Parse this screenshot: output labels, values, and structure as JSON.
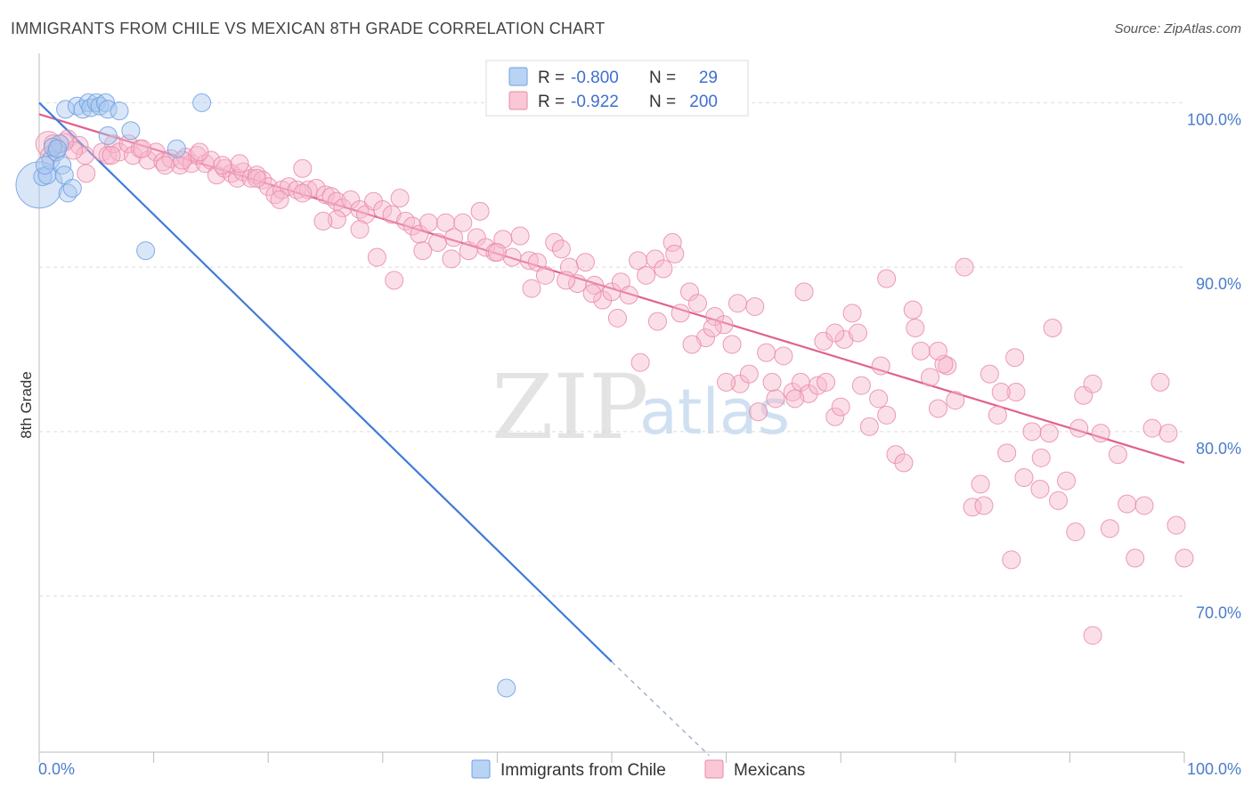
{
  "header": {
    "title": "IMMIGRANTS FROM CHILE VS MEXICAN 8TH GRADE CORRELATION CHART",
    "source": "Source: ZipAtlas.com"
  },
  "watermark": {
    "zip": "ZIP",
    "atlas": "atlas"
  },
  "legend": {
    "rows": [
      {
        "r_label": "R =",
        "r_value": "-0.800",
        "n_label": "N =",
        "n_value": "29",
        "color": "#a8c8f0",
        "stroke": "#6f9fe0"
      },
      {
        "r_label": "R =",
        "r_value": "-0.922",
        "n_label": "N =",
        "n_value": "200",
        "color": "#f7b9cb",
        "stroke": "#e98aa8"
      }
    ]
  },
  "chart_data": {
    "type": "scatter",
    "xlabel": "",
    "ylabel": "8th Grade",
    "xlim": [
      0,
      100
    ],
    "ylim": [
      60.5,
      103
    ],
    "x_tick_labels": [
      "0.0%",
      "100.0%"
    ],
    "y_ticks": [
      {
        "value": 100,
        "label": "100.0%"
      },
      {
        "value": 90,
        "label": "90.0%"
      },
      {
        "value": 80,
        "label": "80.0%"
      },
      {
        "value": 70,
        "label": "70.0%"
      }
    ],
    "grid": true,
    "legend_position": "bottom-center",
    "series": [
      {
        "name": "Immigrants from Chile",
        "color": "#a8c8f0",
        "stroke": "#6f9fe0",
        "line_color": "#3f7bd9",
        "trend": {
          "x0": 0,
          "y0": 100.0,
          "x1": 50,
          "y1": 66.0,
          "dash_to_x": 58.5,
          "dash_to_y": 60.3
        },
        "points": [
          [
            0.0,
            95.0,
            26
          ],
          [
            0.3,
            95.5,
            10
          ],
          [
            0.7,
            95.6,
            10
          ],
          [
            1.0,
            96.5,
            10
          ],
          [
            1.5,
            97.0,
            10
          ],
          [
            1.8,
            97.5,
            10
          ],
          [
            2.0,
            96.2,
            10
          ],
          [
            2.2,
            95.6,
            10
          ],
          [
            2.5,
            94.5,
            10
          ],
          [
            2.9,
            94.8,
            10
          ],
          [
            2.3,
            99.6,
            10
          ],
          [
            3.3,
            99.8,
            10
          ],
          [
            3.8,
            99.6,
            10
          ],
          [
            4.3,
            100.0,
            10
          ],
          [
            4.5,
            99.7,
            10
          ],
          [
            5.0,
            100.0,
            10
          ],
          [
            5.3,
            99.8,
            10
          ],
          [
            5.8,
            100.0,
            10
          ],
          [
            6.0,
            99.6,
            10
          ],
          [
            7.0,
            99.5,
            10
          ],
          [
            6.0,
            98.0,
            10
          ],
          [
            8.0,
            98.3,
            10
          ],
          [
            12.0,
            97.2,
            10
          ],
          [
            14.2,
            100.0,
            10
          ],
          [
            9.3,
            91.0,
            10
          ],
          [
            1.2,
            97.3,
            10
          ],
          [
            1.6,
            97.2,
            10
          ],
          [
            0.5,
            96.2,
            10
          ],
          [
            40.8,
            64.4,
            10
          ]
        ]
      },
      {
        "name": "Mexicans",
        "color": "#f7b9cb",
        "stroke": "#e98aa8",
        "line_color": "#e0608e",
        "trend": {
          "x0": 0,
          "y0": 99.3,
          "x1": 100,
          "y1": 78.1
        },
        "points": [
          [
            0.8,
            97.5,
            14
          ],
          [
            1.5,
            97.2,
            10
          ],
          [
            2.5,
            97.8,
            10
          ],
          [
            3.5,
            97.4,
            10
          ],
          [
            4.0,
            96.8,
            10
          ],
          [
            4.1,
            95.7,
            10
          ],
          [
            5.5,
            97.0,
            10
          ],
          [
            6.0,
            96.8,
            10
          ],
          [
            6.5,
            97.5,
            10
          ],
          [
            7.0,
            97.0,
            10
          ],
          [
            7.8,
            97.5,
            10
          ],
          [
            8.2,
            96.8,
            10
          ],
          [
            8.8,
            97.2,
            10
          ],
          [
            9.5,
            96.5,
            10
          ],
          [
            10.2,
            97.0,
            10
          ],
          [
            10.8,
            96.4,
            10
          ],
          [
            11.5,
            96.6,
            10
          ],
          [
            12.3,
            96.2,
            10
          ],
          [
            12.8,
            96.7,
            10
          ],
          [
            13.3,
            96.3,
            10
          ],
          [
            13.8,
            96.8,
            10
          ],
          [
            14.5,
            96.3,
            10
          ],
          [
            15.0,
            96.5,
            10
          ],
          [
            15.5,
            95.6,
            10
          ],
          [
            16.2,
            96.0,
            10
          ],
          [
            16.8,
            95.7,
            10
          ],
          [
            17.3,
            95.4,
            10
          ],
          [
            17.8,
            95.8,
            10
          ],
          [
            18.5,
            95.4,
            10
          ],
          [
            19.0,
            95.6,
            10
          ],
          [
            19.5,
            95.3,
            10
          ],
          [
            20.0,
            94.9,
            10
          ],
          [
            20.6,
            94.4,
            10
          ],
          [
            21.2,
            94.7,
            10
          ],
          [
            21.8,
            94.9,
            10
          ],
          [
            22.5,
            94.7,
            10
          ],
          [
            23.0,
            96.0,
            10
          ],
          [
            23.5,
            94.7,
            10
          ],
          [
            24.2,
            94.8,
            10
          ],
          [
            25.0,
            94.4,
            10
          ],
          [
            25.5,
            94.3,
            10
          ],
          [
            26.0,
            94.0,
            10
          ],
          [
            26.5,
            93.6,
            10
          ],
          [
            27.2,
            94.1,
            10
          ],
          [
            28.0,
            93.5,
            10
          ],
          [
            28.5,
            93.2,
            10
          ],
          [
            29.2,
            94.0,
            10
          ],
          [
            30.0,
            93.5,
            10
          ],
          [
            30.8,
            93.2,
            10
          ],
          [
            31.5,
            94.2,
            10
          ],
          [
            32.0,
            92.8,
            10
          ],
          [
            32.6,
            92.5,
            10
          ],
          [
            33.2,
            92.0,
            10
          ],
          [
            34.0,
            92.7,
            10
          ],
          [
            34.8,
            91.5,
            10
          ],
          [
            35.5,
            92.7,
            10
          ],
          [
            36.2,
            91.8,
            10
          ],
          [
            37.0,
            92.7,
            10
          ],
          [
            37.5,
            91.0,
            10
          ],
          [
            38.2,
            91.8,
            10
          ],
          [
            39.0,
            91.2,
            10
          ],
          [
            39.8,
            90.9,
            10
          ],
          [
            40.5,
            91.7,
            10
          ],
          [
            41.3,
            90.6,
            10
          ],
          [
            42.0,
            91.9,
            10
          ],
          [
            42.8,
            90.4,
            10
          ],
          [
            43.5,
            90.3,
            10
          ],
          [
            44.2,
            89.5,
            10
          ],
          [
            45.0,
            91.5,
            10
          ],
          [
            45.6,
            91.1,
            10
          ],
          [
            46.3,
            90.0,
            10
          ],
          [
            47.0,
            89.0,
            10
          ],
          [
            47.7,
            90.3,
            10
          ],
          [
            48.5,
            88.9,
            10
          ],
          [
            49.2,
            88.0,
            10
          ],
          [
            50.0,
            88.5,
            10
          ],
          [
            50.8,
            89.1,
            10
          ],
          [
            51.5,
            88.3,
            10
          ],
          [
            52.3,
            90.4,
            10
          ],
          [
            53.0,
            89.5,
            10
          ],
          [
            53.8,
            90.5,
            10
          ],
          [
            54.5,
            89.9,
            10
          ],
          [
            55.3,
            91.5,
            10
          ],
          [
            56.0,
            87.2,
            10
          ],
          [
            56.8,
            88.5,
            10
          ],
          [
            57.5,
            87.8,
            10
          ],
          [
            58.2,
            85.7,
            10
          ],
          [
            59.0,
            87.0,
            10
          ],
          [
            59.8,
            86.5,
            10
          ],
          [
            60.5,
            85.3,
            10
          ],
          [
            61.2,
            82.9,
            10
          ],
          [
            62.0,
            83.5,
            10
          ],
          [
            62.8,
            81.2,
            10
          ],
          [
            63.5,
            84.8,
            10
          ],
          [
            64.3,
            82.0,
            10
          ],
          [
            65.0,
            84.6,
            10
          ],
          [
            65.8,
            82.4,
            10
          ],
          [
            66.5,
            83.0,
            10
          ],
          [
            67.2,
            82.3,
            10
          ],
          [
            68.0,
            82.8,
            10
          ],
          [
            68.7,
            83.0,
            10
          ],
          [
            69.5,
            80.9,
            10
          ],
          [
            70.3,
            85.6,
            10
          ],
          [
            71.0,
            87.2,
            10
          ],
          [
            71.8,
            82.8,
            10
          ],
          [
            72.5,
            80.3,
            10
          ],
          [
            73.3,
            82.0,
            10
          ],
          [
            74.0,
            81.0,
            10
          ],
          [
            74.8,
            78.6,
            10
          ],
          [
            75.5,
            78.1,
            10
          ],
          [
            76.3,
            87.4,
            10
          ],
          [
            77.0,
            84.9,
            10
          ],
          [
            77.8,
            83.3,
            10
          ],
          [
            78.5,
            81.4,
            10
          ],
          [
            79.3,
            84.0,
            10
          ],
          [
            80.0,
            81.9,
            10
          ],
          [
            80.8,
            90.0,
            10
          ],
          [
            81.5,
            75.4,
            10
          ],
          [
            82.2,
            76.8,
            10
          ],
          [
            83.0,
            83.5,
            10
          ],
          [
            83.7,
            81.0,
            10
          ],
          [
            84.5,
            78.7,
            10
          ],
          [
            85.3,
            82.4,
            10
          ],
          [
            86.0,
            77.2,
            10
          ],
          [
            86.7,
            80.0,
            10
          ],
          [
            87.5,
            78.4,
            10
          ],
          [
            88.2,
            79.9,
            10
          ],
          [
            89.0,
            75.8,
            10
          ],
          [
            89.7,
            77.0,
            10
          ],
          [
            90.5,
            73.9,
            10
          ],
          [
            91.2,
            82.2,
            10
          ],
          [
            92.0,
            82.9,
            10
          ],
          [
            92.7,
            79.9,
            10
          ],
          [
            93.5,
            74.1,
            10
          ],
          [
            94.2,
            78.6,
            10
          ],
          [
            95.0,
            75.6,
            10
          ],
          [
            95.7,
            72.3,
            10
          ],
          [
            96.5,
            75.5,
            10
          ],
          [
            97.2,
            80.2,
            10
          ],
          [
            97.9,
            83.0,
            10
          ],
          [
            98.6,
            79.9,
            10
          ],
          [
            99.3,
            74.3,
            10
          ],
          [
            100.0,
            72.3,
            10
          ],
          [
            92.0,
            67.6,
            10
          ],
          [
            90.8,
            80.2,
            10
          ],
          [
            87.4,
            76.5,
            10
          ],
          [
            84.9,
            72.2,
            10
          ],
          [
            82.5,
            75.5,
            10
          ],
          [
            85.2,
            84.5,
            10
          ],
          [
            84.0,
            82.4,
            10
          ],
          [
            79.0,
            84.1,
            10
          ],
          [
            76.5,
            86.3,
            10
          ],
          [
            73.5,
            84.0,
            10
          ],
          [
            70.0,
            81.5,
            10
          ],
          [
            68.5,
            85.5,
            10
          ],
          [
            66.0,
            82.0,
            10
          ],
          [
            64.0,
            83.0,
            10
          ],
          [
            60.0,
            83.0,
            10
          ],
          [
            57.0,
            85.3,
            10
          ],
          [
            54.0,
            86.7,
            10
          ],
          [
            52.5,
            84.2,
            10
          ],
          [
            50.5,
            86.9,
            10
          ],
          [
            48.3,
            88.4,
            10
          ],
          [
            46.0,
            89.2,
            10
          ],
          [
            43.0,
            88.7,
            10
          ],
          [
            40.0,
            90.9,
            10
          ],
          [
            38.5,
            93.4,
            10
          ],
          [
            36.0,
            90.5,
            10
          ],
          [
            33.5,
            91.0,
            10
          ],
          [
            31.0,
            89.2,
            10
          ],
          [
            29.5,
            90.6,
            10
          ],
          [
            28.0,
            92.3,
            10
          ],
          [
            26.0,
            92.9,
            10
          ],
          [
            24.8,
            92.8,
            10
          ],
          [
            23.0,
            94.5,
            10
          ],
          [
            21.0,
            94.1,
            10
          ],
          [
            19.0,
            95.4,
            10
          ],
          [
            17.5,
            96.3,
            10
          ],
          [
            16.0,
            96.2,
            10
          ],
          [
            14.0,
            97.0,
            10
          ],
          [
            12.5,
            96.5,
            10
          ],
          [
            11.0,
            96.2,
            10
          ],
          [
            9.0,
            97.2,
            10
          ],
          [
            6.3,
            96.8,
            10
          ],
          [
            3.0,
            97.1,
            10
          ],
          [
            2.2,
            97.6,
            10
          ],
          [
            1.2,
            97.5,
            10
          ],
          [
            0.9,
            96.8,
            10
          ],
          [
            66.8,
            88.5,
            10
          ],
          [
            69.5,
            86.0,
            10
          ],
          [
            74.0,
            89.3,
            10
          ],
          [
            78.5,
            84.9,
            10
          ],
          [
            88.5,
            86.3,
            10
          ],
          [
            62.5,
            87.6,
            10
          ],
          [
            58.8,
            86.3,
            10
          ],
          [
            55.5,
            90.8,
            10
          ],
          [
            61.0,
            87.8,
            10
          ],
          [
            71.5,
            86.0,
            10
          ]
        ]
      }
    ]
  }
}
